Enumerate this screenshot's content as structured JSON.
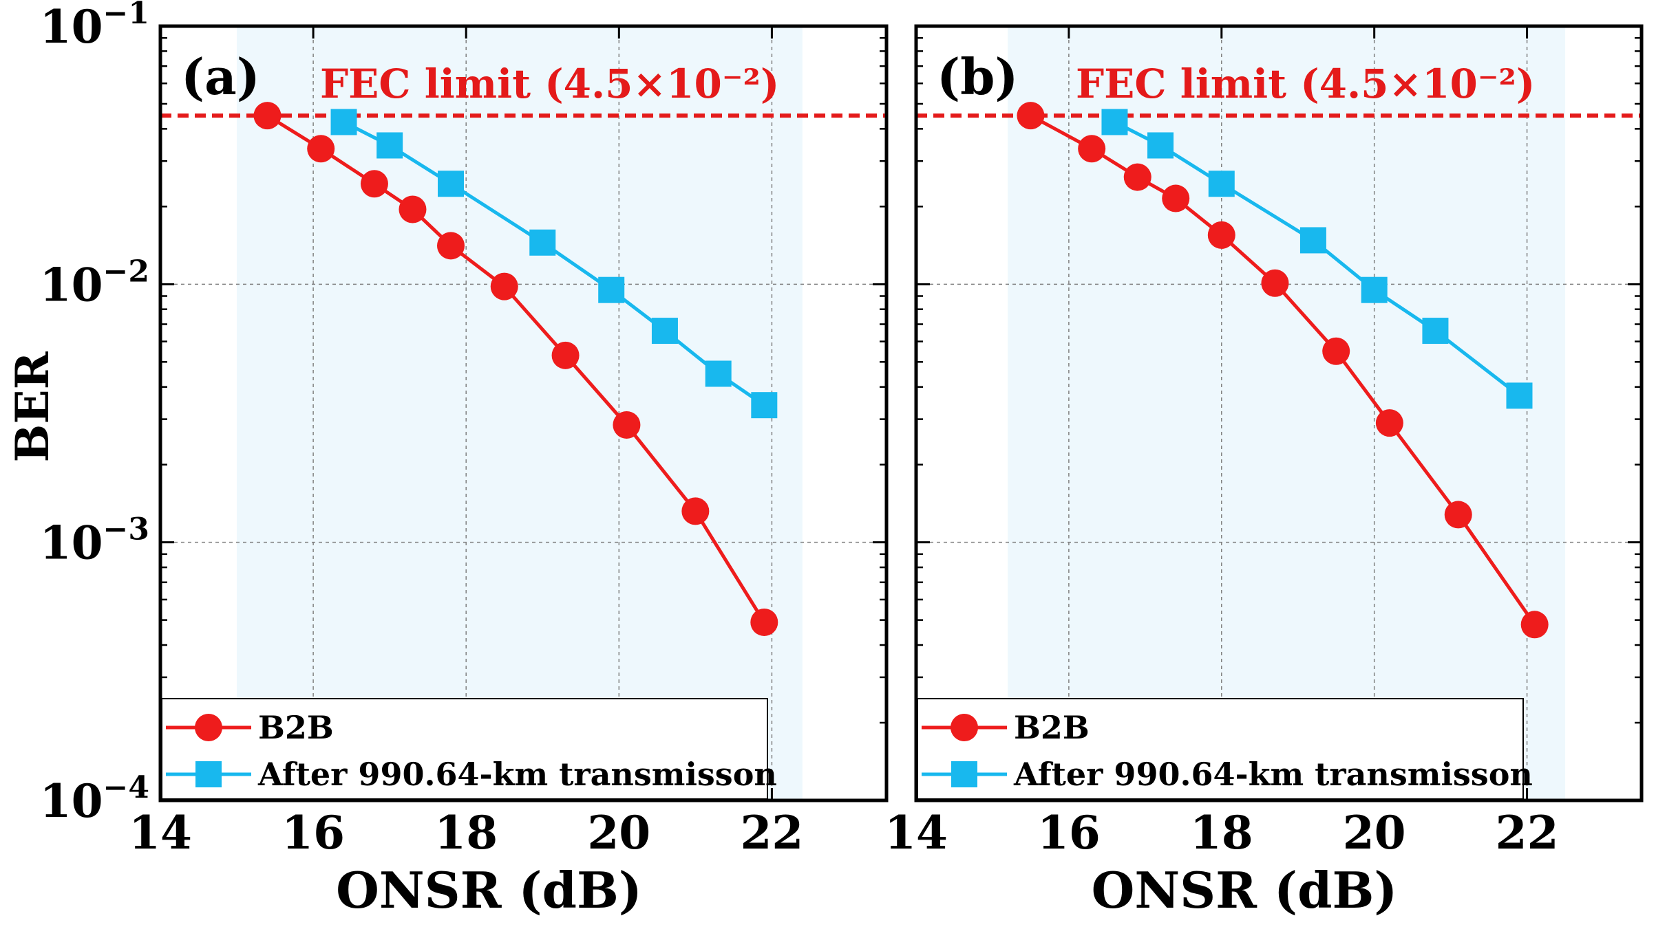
{
  "figure": {
    "ylabel_shared": "BER"
  },
  "chart_data": [
    {
      "type": "line",
      "panel_label": "(a)",
      "xlabel": "ONSR (dB)",
      "ylabel": "BER",
      "xlim": [
        14,
        23.5
      ],
      "ylim": [
        0.0001,
        0.1
      ],
      "yscale": "log",
      "grid": true,
      "x_ticks": [
        14,
        16,
        18,
        20,
        22
      ],
      "x_tick_labels": [
        "14",
        "16",
        "18",
        "20",
        "22"
      ],
      "y_ticks": [
        0.0001,
        0.001,
        0.01,
        0.1
      ],
      "y_tick_labels": [
        {
          "base": "10",
          "exp": "−4"
        },
        {
          "base": "10",
          "exp": "−3"
        },
        {
          "base": "10",
          "exp": "−2"
        },
        {
          "base": "10",
          "exp": "−1"
        }
      ],
      "shaded_range": [
        15,
        22.4
      ],
      "fec": {
        "value": 0.045,
        "label": "FEC limit (4.5×10⁻²)"
      },
      "legend_position": "bottom-left",
      "series": [
        {
          "name": "B2B",
          "color": "#ee1c1c",
          "marker": "circle",
          "x": [
            15.4,
            16.1,
            16.8,
            17.3,
            17.8,
            18.5,
            19.3,
            20.1,
            21.0,
            21.9
          ],
          "y": [
            0.045,
            0.0335,
            0.0245,
            0.0195,
            0.0141,
            0.0098,
            0.0053,
            0.00285,
            0.00132,
            0.00049
          ]
        },
        {
          "name": "After 990.64-km transmisson",
          "color": "#18b8ee",
          "marker": "square",
          "x": [
            16.4,
            17.0,
            17.8,
            19.0,
            19.9,
            20.6,
            21.3,
            21.9
          ],
          "y": [
            0.0425,
            0.0345,
            0.0245,
            0.0145,
            0.0095,
            0.0066,
            0.0045,
            0.0034
          ]
        }
      ]
    },
    {
      "type": "line",
      "panel_label": "(b)",
      "xlabel": "ONSR (dB)",
      "ylabel": "BER",
      "xlim": [
        14,
        23.5
      ],
      "ylim": [
        0.0001,
        0.1
      ],
      "yscale": "log",
      "grid": true,
      "x_ticks": [
        14,
        16,
        18,
        20,
        22
      ],
      "x_tick_labels": [
        "14",
        "16",
        "18",
        "20",
        "22"
      ],
      "y_ticks": [
        0.0001,
        0.001,
        0.01,
        0.1
      ],
      "y_tick_labels": [],
      "shaded_range": [
        15.2,
        22.5
      ],
      "fec": {
        "value": 0.045,
        "label": "FEC limit (4.5×10⁻²)"
      },
      "legend_position": "bottom-left",
      "series": [
        {
          "name": "B2B",
          "color": "#ee1c1c",
          "marker": "circle",
          "x": [
            15.5,
            16.3,
            16.9,
            17.4,
            18.0,
            18.7,
            19.5,
            20.2,
            21.1,
            22.1
          ],
          "y": [
            0.045,
            0.0335,
            0.026,
            0.0215,
            0.0155,
            0.0101,
            0.0055,
            0.0029,
            0.00128,
            0.00048
          ]
        },
        {
          "name": "After 990.64-km transmisson",
          "color": "#18b8ee",
          "marker": "square",
          "x": [
            16.6,
            17.2,
            18.0,
            19.2,
            20.0,
            20.8,
            21.9
          ],
          "y": [
            0.0425,
            0.0345,
            0.0245,
            0.0148,
            0.0095,
            0.0066,
            0.0037
          ]
        }
      ]
    }
  ]
}
